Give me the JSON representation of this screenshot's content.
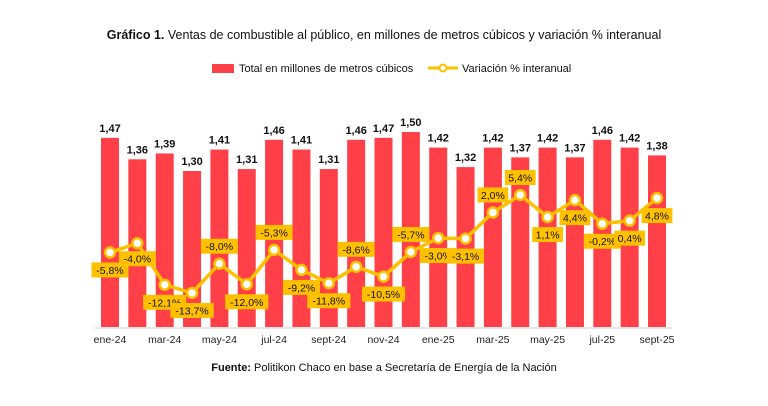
{
  "chart_data": {
    "type": "bar+line",
    "title_bold": "Gráfico 1.",
    "title": "Ventas de combustible al público, en millones de metros cúbicos y variación % interanual",
    "legend_position": "top",
    "grid": false,
    "categories": [
      "ene-24",
      "feb-24",
      "mar-24",
      "abr-24",
      "may-24",
      "jun-24",
      "jul-24",
      "ago-24",
      "sept-24",
      "oct-24",
      "nov-24",
      "dic-24",
      "ene-25",
      "feb-25",
      "mar-25",
      "abr-25",
      "may-25",
      "jun-25",
      "jul-25",
      "ago-25",
      "sept-25"
    ],
    "tick_labels": [
      "ene-24",
      "mar-24",
      "may-24",
      "jul-24",
      "sept-24",
      "nov-24",
      "ene-25",
      "mar-25",
      "may-25",
      "jul-25",
      "sept-25"
    ],
    "series": [
      {
        "name": "Total en millones de metros cúbicos",
        "type": "bar",
        "color": "#ff4048",
        "values": [
          1.47,
          1.36,
          1.39,
          1.3,
          1.41,
          1.31,
          1.46,
          1.41,
          1.31,
          1.46,
          1.47,
          1.5,
          1.42,
          1.32,
          1.42,
          1.37,
          1.42,
          1.37,
          1.46,
          1.42,
          1.38
        ],
        "labels": [
          "1,47",
          "1,36",
          "1,39",
          "1,30",
          "1,41",
          "1,31",
          "1,46",
          "1,41",
          "1,31",
          "1,46",
          "1,47",
          "1,50",
          "1,42",
          "1,32",
          "1,42",
          "1,37",
          "1,42",
          "1,37",
          "1,46",
          "1,42",
          "1,38"
        ]
      },
      {
        "name": "Variación % interanual",
        "type": "line",
        "color": "#ffc000",
        "values": [
          -5.8,
          -4.0,
          -12.1,
          -13.7,
          -8.0,
          -12.0,
          -5.3,
          -9.2,
          -11.8,
          -8.6,
          -10.5,
          -5.7,
          -3.0,
          -3.1,
          2.0,
          5.4,
          1.1,
          4.4,
          -0.2,
          0.4,
          4.8
        ],
        "labels": [
          "-5,8%",
          "-4,0%",
          "-12,1%",
          "-13,7%",
          "-8,0%",
          "-12,0%",
          "-5,3%",
          "-9,2%",
          "-11,8%",
          "-8,6%",
          "-10,5%",
          "-5,7%",
          "-3,0%",
          "-3,1%",
          "2,0%",
          "5,4%",
          "1,1%",
          "4,4%",
          "-0,2%",
          "0,4%",
          "4,8%"
        ]
      }
    ],
    "source_bold": "Fuente:",
    "source": "Politikon Chaco en base a Secretaría de Energía de la Nación"
  }
}
